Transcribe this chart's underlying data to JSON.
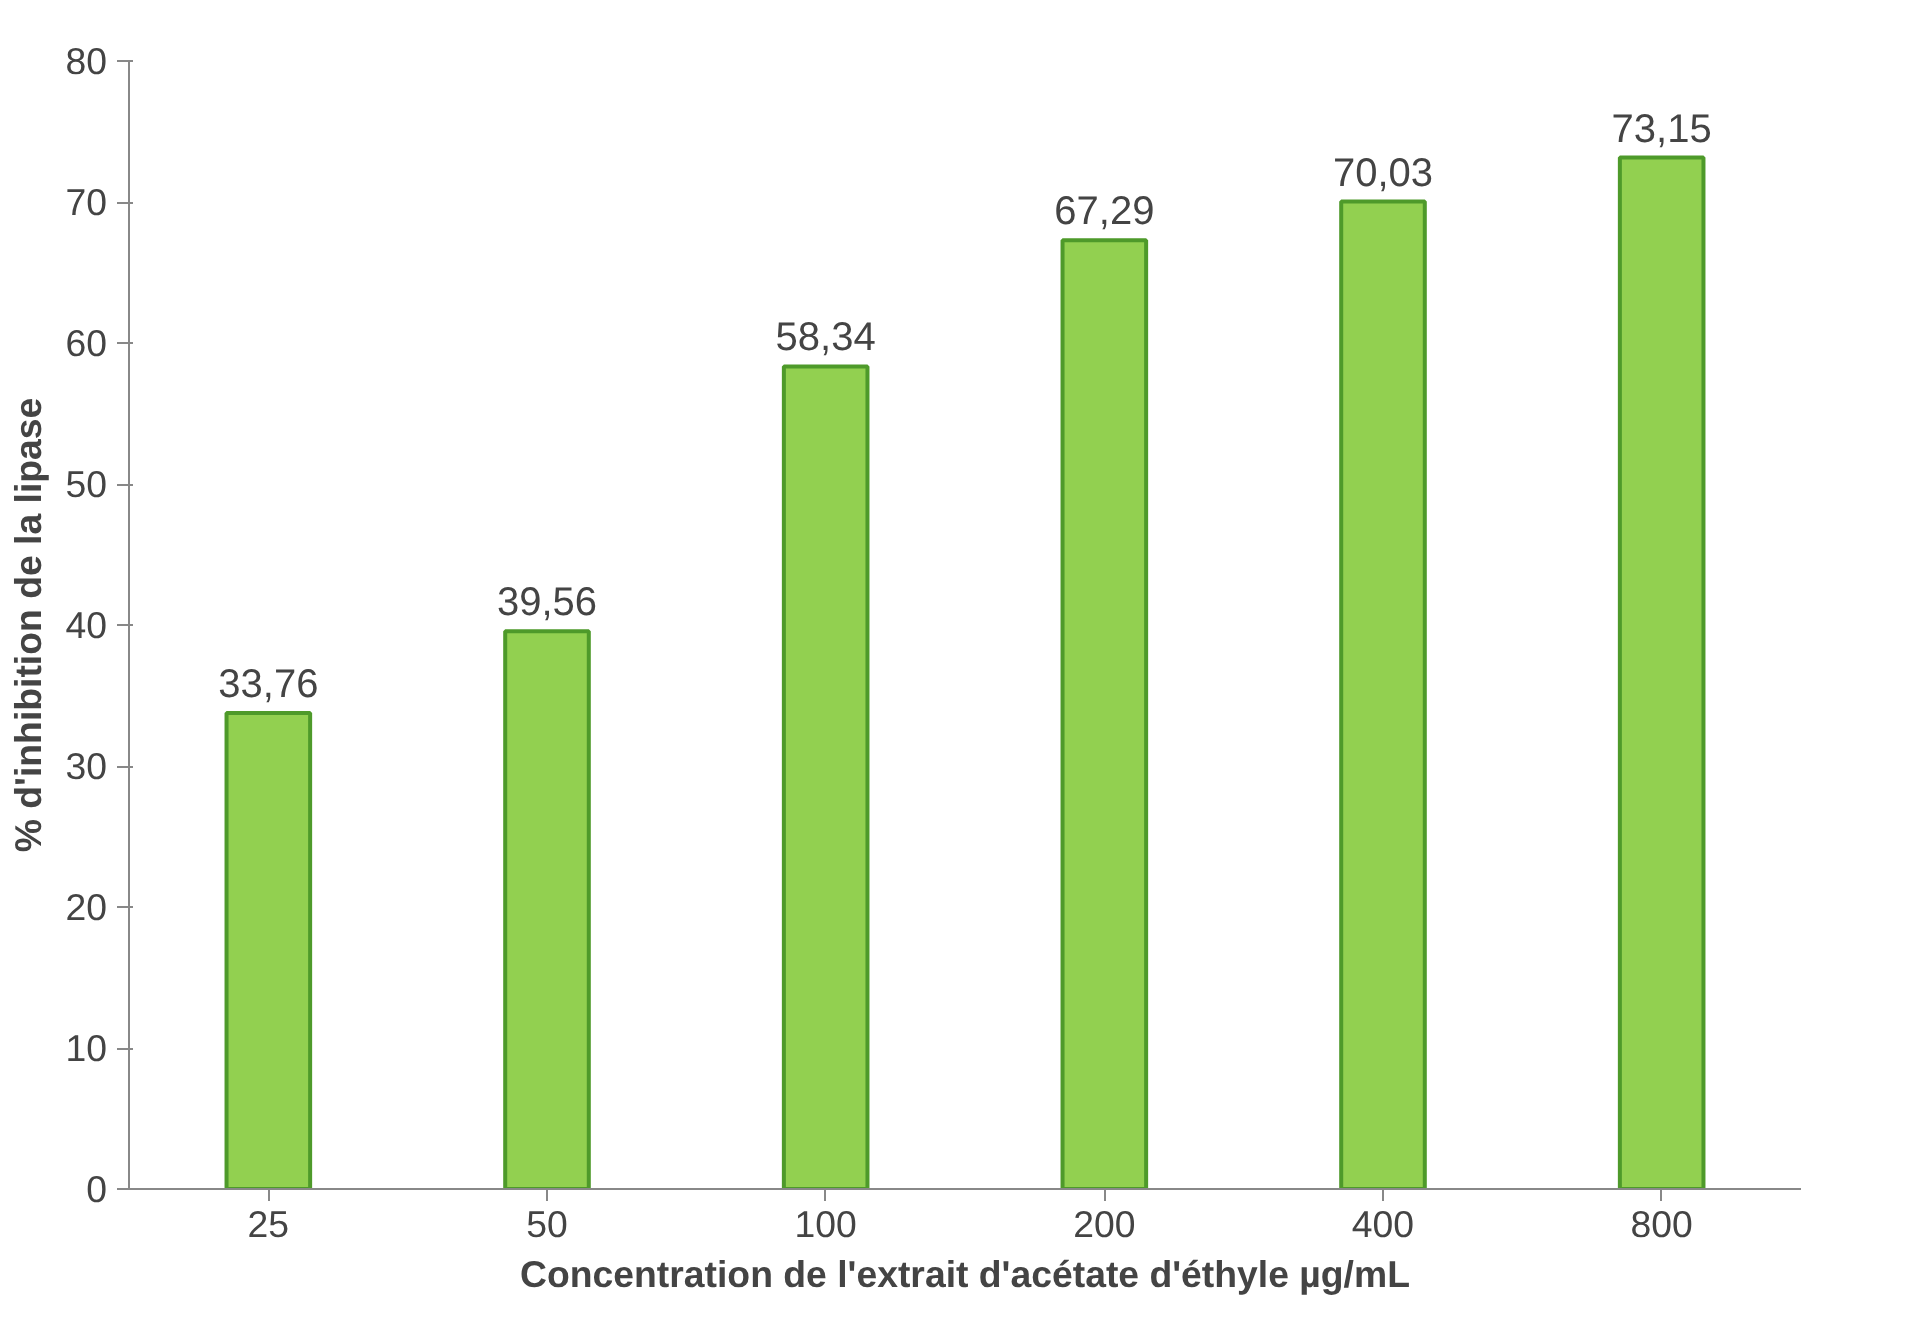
{
  "chart_data": {
    "type": "bar",
    "xlabel": "Concentration de l'extrait d'acétate d'éthyle µg/mL",
    "ylabel": "% d'inhibition de la lipase",
    "categories": [
      "25",
      "50",
      "100",
      "200",
      "400",
      "800"
    ],
    "values": [
      33.76,
      39.56,
      58.34,
      67.29,
      70.03,
      73.15
    ],
    "value_labels": [
      "33,76",
      "39,56",
      "58,34",
      "67,29",
      "70,03",
      "73,15"
    ],
    "color": "#92d050",
    "ylim": [
      0,
      80
    ],
    "yticks": [
      0,
      10,
      20,
      30,
      40,
      50,
      60,
      70,
      80
    ],
    "grid": false
  }
}
